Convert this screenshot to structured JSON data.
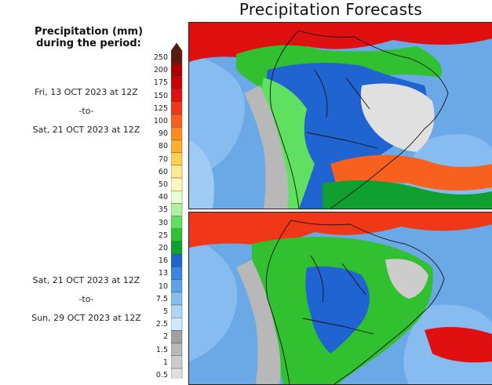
{
  "title": "Precipitation Forecasts",
  "legend": {
    "heading_line1": "Precipitation (mm)",
    "heading_line2": "during the period:",
    "levels": [
      "250",
      "200",
      "175",
      "150",
      "125",
      "100",
      "90",
      "80",
      "70",
      "60",
      "50",
      "40",
      "35",
      "30",
      "25",
      "20",
      "16",
      "13",
      "10",
      "7.5",
      "5",
      "2.5",
      "2",
      "1.5",
      "1",
      "0.5"
    ],
    "colors": [
      "#5a1a10",
      "#a80000",
      "#c80000",
      "#e01010",
      "#f03818",
      "#f86020",
      "#fc8c20",
      "#fdae30",
      "#fed050",
      "#fee890",
      "#fff8c0",
      "#e8ffd0",
      "#b0f0a0",
      "#60e060",
      "#30c030",
      "#10a030",
      "#1f64d0",
      "#3a86e0",
      "#5ea2ea",
      "#86bcf0",
      "#b0d6f6",
      "#d0e8fb",
      "#a0a0a0",
      "#b8b8b8",
      "#cccccc",
      "#e0e0e0"
    ]
  },
  "periods": [
    {
      "start": "Fri, 13 OCT 2023 at 12Z",
      "sep": "-to-",
      "end": "Sat, 21 OCT 2023 at 12Z"
    },
    {
      "start": "Sat, 21 OCT 2023 at 12Z",
      "sep": "-to-",
      "end": "Sun, 29 OCT 2023 at 12Z"
    }
  ]
}
